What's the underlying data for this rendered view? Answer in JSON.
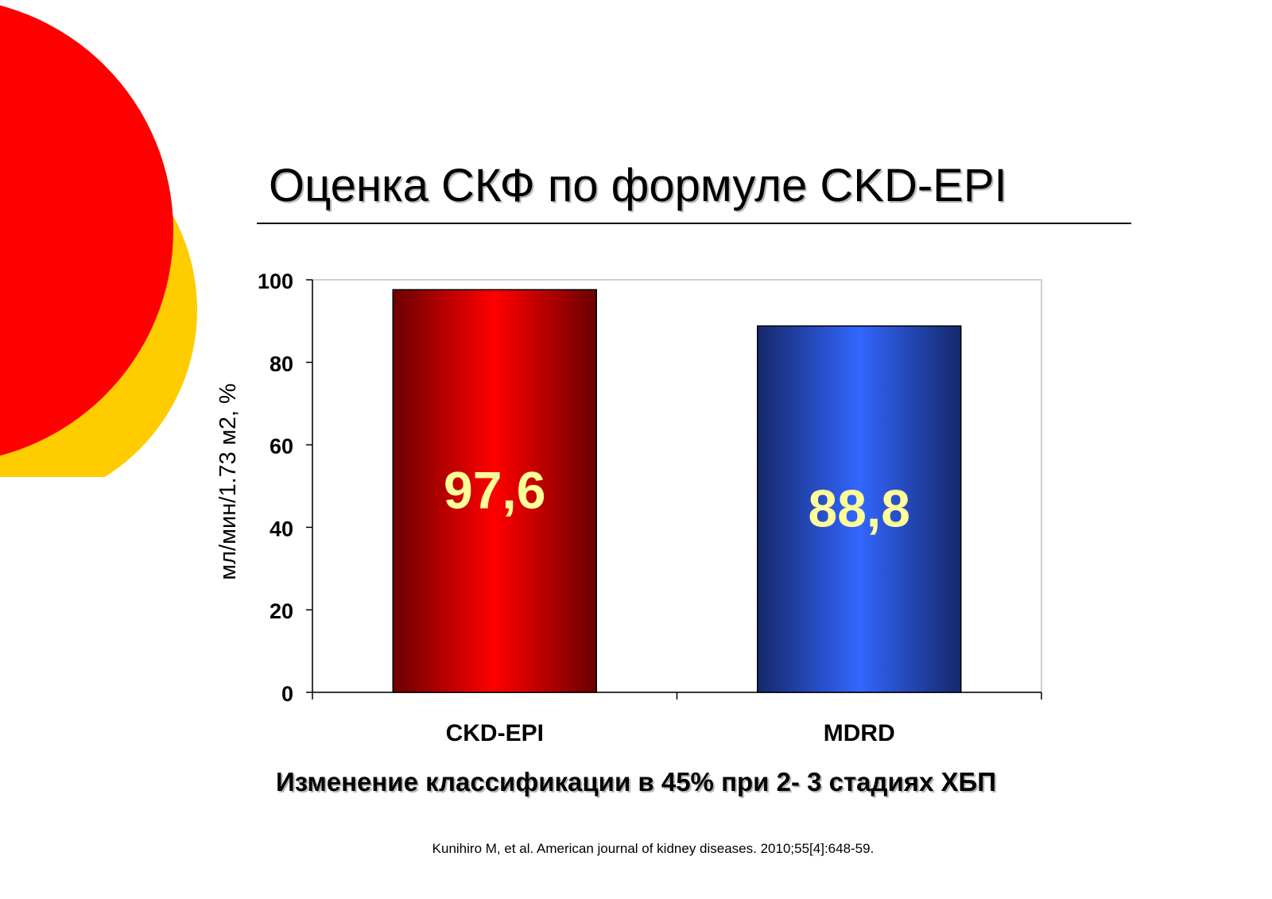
{
  "slide": {
    "title": "Оценка СКФ по формуле CKD-EPI",
    "summary": "Изменение классификации в 45%  при 2- 3 стадиях ХБП",
    "citation": "Kunihiro M, et al. American journal of kidney diseases. 2010;55[4]:648-59."
  },
  "colors": {
    "deco_red": "#ff0000",
    "deco_yellow": "#ffcc00",
    "bar_red_dark": "#6b0000",
    "bar_red_light": "#ff0000",
    "bar_blue_dark": "#14286b",
    "bar_blue_light": "#3366ff",
    "value_label": "#ffff99"
  },
  "chart_data": {
    "type": "bar",
    "title": "",
    "xlabel": "",
    "ylabel": "мл/мин/1.73 м2, %",
    "categories": [
      "CKD-EPI",
      "MDRD"
    ],
    "values": [
      97.6,
      88.8
    ],
    "value_labels": [
      "97,6",
      "88,8"
    ],
    "ylim": [
      0,
      100
    ],
    "yticks": [
      0,
      20,
      40,
      60,
      80,
      100
    ],
    "grid": false,
    "legend": "none"
  }
}
